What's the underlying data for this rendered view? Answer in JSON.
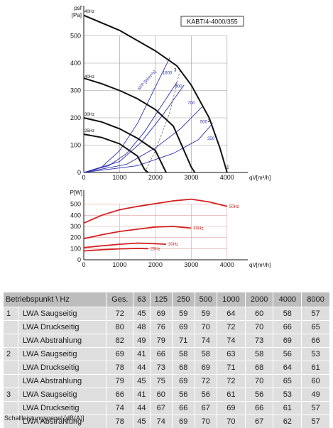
{
  "chart_data": [
    {
      "type": "line",
      "model": "KABT/4-4000/355",
      "xlabel": "qV[m³/h]",
      "ylabel_top": "psf",
      "ylabel_unit": "[Pa]",
      "xlim": [
        0,
        4500
      ],
      "ylim": [
        0,
        600
      ],
      "xticks": [
        0,
        1000,
        2000,
        3000,
        4000
      ],
      "yticks": [
        0,
        100,
        200,
        300,
        400,
        500
      ],
      "grid": true,
      "fan_curves": [
        {
          "name": "40Hz",
          "label_y": 340,
          "points": [
            [
              0,
              345
            ],
            [
              500,
              325
            ],
            [
              1000,
              300
            ],
            [
              1500,
              270
            ],
            [
              2000,
              230
            ],
            [
              2500,
              170
            ],
            [
              3000,
              20
            ],
            [
              3100,
              0
            ]
          ]
        },
        {
          "name": "30Hz",
          "label_y": 202,
          "points": [
            [
              0,
              200
            ],
            [
              500,
              185
            ],
            [
              1000,
              160
            ],
            [
              1500,
              125
            ],
            [
              2000,
              80
            ],
            [
              2300,
              0
            ]
          ]
        },
        {
          "name": "25Hz",
          "label_y": 143,
          "points": [
            [
              0,
              140
            ],
            [
              500,
              128
            ],
            [
              1000,
              105
            ],
            [
              1500,
              60
            ],
            [
              1700,
              10
            ],
            [
              1800,
              0
            ]
          ]
        }
      ],
      "unlabeled_fan_curves": [
        {
          "points": [
            [
              0,
              575
            ],
            [
              1000,
              520
            ],
            [
              2000,
              445
            ],
            [
              2600,
              390
            ],
            [
              3000,
              320
            ],
            [
              3500,
              200
            ],
            [
              3800,
              90
            ],
            [
              4000,
              0
            ]
          ]
        }
      ],
      "fan_curve_top_label": "40Hz",
      "system_curves": [
        {
          "name": "1600",
          "label_x": 2200,
          "label_y": 360,
          "points": [
            [
              0,
              0
            ],
            [
              500,
              20
            ],
            [
              1000,
              80
            ],
            [
              1500,
              180
            ],
            [
              1800,
              260
            ],
            [
              2100,
              340
            ],
            [
              2400,
              420
            ]
          ]
        },
        {
          "name": "900",
          "label_x": 2550,
          "label_y": 310,
          "points": [
            [
              0,
              0
            ],
            [
              700,
              25
            ],
            [
              1200,
              70
            ],
            [
              1700,
              150
            ],
            [
              2100,
              230
            ],
            [
              2600,
              330
            ]
          ]
        },
        {
          "name": "700",
          "label_x": 2900,
          "label_y": 250,
          "points": [
            [
              0,
              0
            ],
            [
              1000,
              40
            ],
            [
              1600,
              110
            ],
            [
              2200,
              210
            ],
            [
              2800,
              320
            ]
          ]
        },
        {
          "name": "500",
          "label_x": 3250,
          "label_y": 180,
          "points": [
            [
              0,
              0
            ],
            [
              1200,
              30
            ],
            [
              2000,
              90
            ],
            [
              2700,
              160
            ],
            [
              3300,
              240
            ]
          ]
        },
        {
          "name": "350",
          "label_x": 3450,
          "label_y": 120,
          "points": [
            [
              0,
              0
            ],
            [
              1500,
              25
            ],
            [
              2500,
              70
            ],
            [
              3200,
              120
            ],
            [
              3600,
              180
            ]
          ]
        }
      ],
      "sfp_label": "SFP [W/m³/s]",
      "operating_points": [
        {
          "name": "3",
          "x": 2480,
          "y": 375
        },
        {
          "name": "2",
          "x": 3420,
          "y": 190
        },
        {
          "name": "1",
          "x": 3950,
          "y": 20
        }
      ],
      "parabola": {
        "points": [
          [
            1700,
            0
          ],
          [
            2000,
            80
          ],
          [
            2200,
            150
          ],
          [
            2400,
            220
          ],
          [
            2550,
            300
          ],
          [
            2700,
            380
          ]
        ]
      }
    },
    {
      "type": "line",
      "ylabel": "P[W]",
      "xlabel": "qV[m³/h]",
      "xlim": [
        0,
        4500
      ],
      "ylim": [
        0,
        600
      ],
      "xticks": [
        0,
        1000,
        2000,
        3000,
        4000
      ],
      "yticks": [
        0,
        100,
        200,
        300,
        400,
        500
      ],
      "grid": true,
      "series": [
        {
          "name": "50Hz",
          "points": [
            [
              0,
              330
            ],
            [
              500,
              400
            ],
            [
              1000,
              450
            ],
            [
              1500,
              480
            ],
            [
              2000,
              505
            ],
            [
              2500,
              530
            ],
            [
              3000,
              545
            ],
            [
              3500,
              520
            ],
            [
              4000,
              480
            ]
          ]
        },
        {
          "name": "40Hz",
          "points": [
            [
              0,
              190
            ],
            [
              500,
              225
            ],
            [
              1000,
              255
            ],
            [
              1500,
              275
            ],
            [
              2000,
              295
            ],
            [
              2500,
              300
            ],
            [
              3000,
              285
            ]
          ]
        },
        {
          "name": "30Hz",
          "points": [
            [
              0,
              110
            ],
            [
              500,
              125
            ],
            [
              1000,
              140
            ],
            [
              1500,
              150
            ],
            [
              2000,
              145
            ],
            [
              2300,
              140
            ]
          ]
        },
        {
          "name": "25Hz",
          "points": [
            [
              0,
              80
            ],
            [
              500,
              90
            ],
            [
              1000,
              98
            ],
            [
              1500,
              102
            ],
            [
              1800,
              100
            ]
          ]
        }
      ]
    }
  ],
  "color_black": "#111111",
  "color_blue": "#2b2fb0",
  "color_red": "#d42020",
  "table": {
    "headers": [
      "Betriebspunkt \\ Hz",
      "Ges.",
      "63",
      "125",
      "250",
      "500",
      "1000",
      "2000",
      "4000",
      "8000"
    ],
    "rows": [
      {
        "bp": "1",
        "label": "LWA Saugseitig",
        "values": [
          "72",
          "45",
          "69",
          "59",
          "59",
          "64",
          "60",
          "58",
          "57"
        ]
      },
      {
        "bp": "",
        "label": "LWA Druckseitig",
        "values": [
          "80",
          "48",
          "76",
          "69",
          "70",
          "72",
          "70",
          "66",
          "65"
        ]
      },
      {
        "bp": "",
        "label": "LWA Abstrahlung",
        "values": [
          "82",
          "49",
          "79",
          "71",
          "74",
          "74",
          "73",
          "69",
          "66"
        ]
      },
      {
        "bp": "2",
        "label": "LWA Saugseitig",
        "values": [
          "69",
          "41",
          "66",
          "58",
          "58",
          "63",
          "58",
          "56",
          "53"
        ]
      },
      {
        "bp": "",
        "label": "LWA Druckseitig",
        "values": [
          "78",
          "44",
          "73",
          "68",
          "69",
          "71",
          "68",
          "64",
          "61"
        ]
      },
      {
        "bp": "",
        "label": "LWA Abstrahlung",
        "values": [
          "79",
          "45",
          "75",
          "69",
          "72",
          "72",
          "70",
          "65",
          "60"
        ]
      },
      {
        "bp": "3",
        "label": "LWA Saugseitig",
        "values": [
          "66",
          "41",
          "60",
          "56",
          "56",
          "61",
          "56",
          "53",
          "49"
        ]
      },
      {
        "bp": "",
        "label": "LWA Druckseitig",
        "values": [
          "74",
          "44",
          "67",
          "66",
          "67",
          "69",
          "66",
          "61",
          "57"
        ]
      },
      {
        "bp": "",
        "label": "LWA Abstrahlung",
        "values": [
          "78",
          "45",
          "74",
          "69",
          "70",
          "70",
          "67",
          "62",
          "57"
        ]
      }
    ],
    "caption": "Schallleistungspegel [dB(A)]"
  }
}
